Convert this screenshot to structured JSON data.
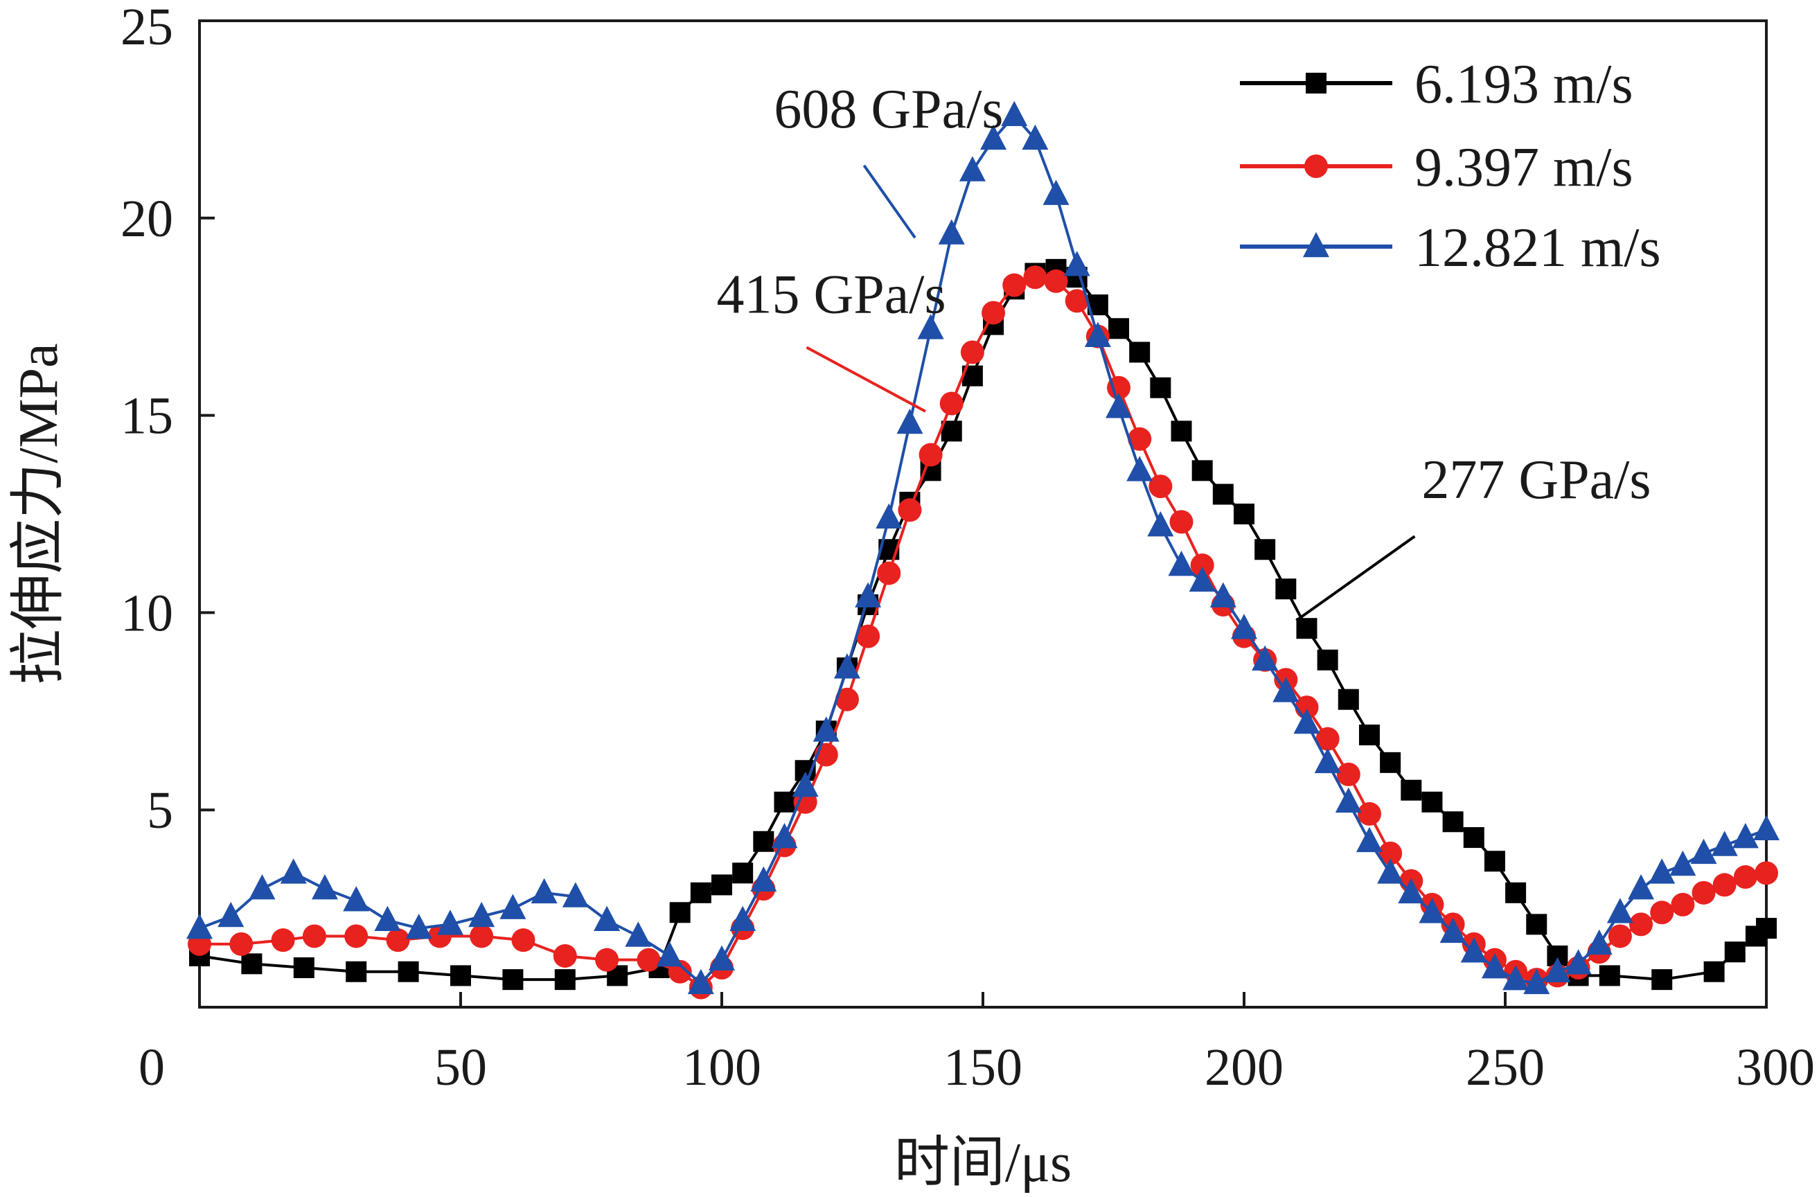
{
  "chart_data": {
    "type": "line",
    "xlabel": "时间/μs",
    "ylabel": "拉伸应力/MPa",
    "xlim": [
      0,
      300
    ],
    "ylim": [
      0,
      25
    ],
    "xticks": [
      0,
      50,
      100,
      150,
      200,
      250,
      300
    ],
    "yticks": [
      5,
      10,
      15,
      20,
      25
    ],
    "grid": false,
    "legend_position": "top-right",
    "series": [
      {
        "name": "6.193 m/s",
        "color": "#000000",
        "marker": "square",
        "points": [
          [
            0,
            1.3
          ],
          [
            10,
            1.1
          ],
          [
            20,
            1.0
          ],
          [
            30,
            0.9
          ],
          [
            40,
            0.9
          ],
          [
            50,
            0.8
          ],
          [
            60,
            0.7
          ],
          [
            70,
            0.7
          ],
          [
            80,
            0.8
          ],
          [
            88,
            1.0
          ],
          [
            92,
            2.4
          ],
          [
            96,
            2.9
          ],
          [
            100,
            3.1
          ],
          [
            104,
            3.4
          ],
          [
            108,
            4.2
          ],
          [
            112,
            5.2
          ],
          [
            116,
            6.0
          ],
          [
            120,
            7.0
          ],
          [
            124,
            8.6
          ],
          [
            128,
            10.2
          ],
          [
            132,
            11.6
          ],
          [
            136,
            12.8
          ],
          [
            140,
            13.6
          ],
          [
            144,
            14.6
          ],
          [
            148,
            16.0
          ],
          [
            152,
            17.3
          ],
          [
            156,
            18.2
          ],
          [
            160,
            18.6
          ],
          [
            164,
            18.7
          ],
          [
            168,
            18.5
          ],
          [
            172,
            17.8
          ],
          [
            176,
            17.2
          ],
          [
            180,
            16.6
          ],
          [
            184,
            15.7
          ],
          [
            188,
            14.6
          ],
          [
            192,
            13.6
          ],
          [
            196,
            13.0
          ],
          [
            200,
            12.5
          ],
          [
            204,
            11.6
          ],
          [
            208,
            10.6
          ],
          [
            212,
            9.6
          ],
          [
            216,
            8.8
          ],
          [
            220,
            7.8
          ],
          [
            224,
            6.9
          ],
          [
            228,
            6.2
          ],
          [
            232,
            5.5
          ],
          [
            236,
            5.2
          ],
          [
            240,
            4.7
          ],
          [
            244,
            4.3
          ],
          [
            248,
            3.7
          ],
          [
            252,
            2.9
          ],
          [
            256,
            2.1
          ],
          [
            260,
            1.3
          ],
          [
            264,
            0.8
          ],
          [
            270,
            0.8
          ],
          [
            280,
            0.7
          ],
          [
            290,
            0.9
          ],
          [
            294,
            1.4
          ],
          [
            298,
            1.8
          ],
          [
            300,
            2.0
          ]
        ]
      },
      {
        "name": "9.397 m/s",
        "color": "#e8221f",
        "marker": "circle",
        "points": [
          [
            0,
            1.6
          ],
          [
            8,
            1.6
          ],
          [
            16,
            1.7
          ],
          [
            22,
            1.8
          ],
          [
            30,
            1.8
          ],
          [
            38,
            1.7
          ],
          [
            46,
            1.8
          ],
          [
            54,
            1.8
          ],
          [
            62,
            1.7
          ],
          [
            70,
            1.3
          ],
          [
            78,
            1.2
          ],
          [
            86,
            1.2
          ],
          [
            92,
            0.9
          ],
          [
            96,
            0.5
          ],
          [
            100,
            1.0
          ],
          [
            104,
            2.0
          ],
          [
            108,
            3.0
          ],
          [
            112,
            4.1
          ],
          [
            116,
            5.2
          ],
          [
            120,
            6.4
          ],
          [
            124,
            7.8
          ],
          [
            128,
            9.4
          ],
          [
            132,
            11.0
          ],
          [
            136,
            12.6
          ],
          [
            140,
            14.0
          ],
          [
            144,
            15.3
          ],
          [
            148,
            16.6
          ],
          [
            152,
            17.6
          ],
          [
            156,
            18.3
          ],
          [
            160,
            18.5
          ],
          [
            164,
            18.4
          ],
          [
            168,
            17.9
          ],
          [
            172,
            17.0
          ],
          [
            176,
            15.7
          ],
          [
            180,
            14.4
          ],
          [
            184,
            13.2
          ],
          [
            188,
            12.3
          ],
          [
            192,
            11.2
          ],
          [
            196,
            10.2
          ],
          [
            200,
            9.4
          ],
          [
            204,
            8.8
          ],
          [
            208,
            8.3
          ],
          [
            212,
            7.6
          ],
          [
            216,
            6.8
          ],
          [
            220,
            5.9
          ],
          [
            224,
            4.9
          ],
          [
            228,
            3.9
          ],
          [
            232,
            3.2
          ],
          [
            236,
            2.6
          ],
          [
            240,
            2.1
          ],
          [
            244,
            1.6
          ],
          [
            248,
            1.2
          ],
          [
            252,
            0.9
          ],
          [
            256,
            0.7
          ],
          [
            260,
            0.8
          ],
          [
            264,
            1.0
          ],
          [
            268,
            1.4
          ],
          [
            272,
            1.8
          ],
          [
            276,
            2.1
          ],
          [
            280,
            2.4
          ],
          [
            284,
            2.6
          ],
          [
            288,
            2.9
          ],
          [
            292,
            3.1
          ],
          [
            296,
            3.3
          ],
          [
            300,
            3.4
          ]
        ]
      },
      {
        "name": "12.821 m/s",
        "color": "#1f4fa8",
        "marker": "triangle",
        "points": [
          [
            0,
            2.0
          ],
          [
            6,
            2.3
          ],
          [
            12,
            3.0
          ],
          [
            18,
            3.4
          ],
          [
            24,
            3.0
          ],
          [
            30,
            2.7
          ],
          [
            36,
            2.2
          ],
          [
            42,
            2.0
          ],
          [
            48,
            2.1
          ],
          [
            54,
            2.3
          ],
          [
            60,
            2.5
          ],
          [
            66,
            2.9
          ],
          [
            72,
            2.8
          ],
          [
            78,
            2.2
          ],
          [
            84,
            1.8
          ],
          [
            90,
            1.3
          ],
          [
            96,
            0.6
          ],
          [
            100,
            1.2
          ],
          [
            104,
            2.2
          ],
          [
            108,
            3.2
          ],
          [
            112,
            4.3
          ],
          [
            116,
            5.6
          ],
          [
            120,
            7.0
          ],
          [
            124,
            8.6
          ],
          [
            128,
            10.4
          ],
          [
            132,
            12.4
          ],
          [
            136,
            14.8
          ],
          [
            140,
            17.2
          ],
          [
            144,
            19.6
          ],
          [
            148,
            21.2
          ],
          [
            152,
            22.0
          ],
          [
            156,
            22.6
          ],
          [
            160,
            22.0
          ],
          [
            164,
            20.6
          ],
          [
            168,
            18.8
          ],
          [
            172,
            17.0
          ],
          [
            176,
            15.2
          ],
          [
            180,
            13.6
          ],
          [
            184,
            12.2
          ],
          [
            188,
            11.2
          ],
          [
            192,
            10.8
          ],
          [
            196,
            10.4
          ],
          [
            200,
            9.6
          ],
          [
            204,
            8.8
          ],
          [
            208,
            8.0
          ],
          [
            212,
            7.2
          ],
          [
            216,
            6.2
          ],
          [
            220,
            5.2
          ],
          [
            224,
            4.2
          ],
          [
            228,
            3.4
          ],
          [
            232,
            2.9
          ],
          [
            236,
            2.4
          ],
          [
            240,
            1.9
          ],
          [
            244,
            1.4
          ],
          [
            248,
            1.0
          ],
          [
            252,
            0.7
          ],
          [
            256,
            0.6
          ],
          [
            260,
            0.9
          ],
          [
            264,
            1.1
          ],
          [
            268,
            1.6
          ],
          [
            272,
            2.4
          ],
          [
            276,
            3.0
          ],
          [
            280,
            3.4
          ],
          [
            284,
            3.6
          ],
          [
            288,
            3.9
          ],
          [
            292,
            4.1
          ],
          [
            296,
            4.3
          ],
          [
            300,
            4.5
          ]
        ]
      }
    ],
    "annotations": [
      {
        "text": "608 GPa/s",
        "series": "12.821 m/s",
        "target": [
          137,
          19.5
        ],
        "label_anchor": [
          110,
          22.3
        ]
      },
      {
        "text": "415 GPa/s",
        "series": "9.397 m/s",
        "target": [
          139,
          15.1
        ],
        "label_anchor": [
          99,
          17.6
        ]
      },
      {
        "text": "277 GPa/s",
        "series": "6.193 m/s",
        "target": [
          210,
          9.8
        ],
        "label_anchor": [
          234,
          12.9
        ]
      }
    ]
  }
}
